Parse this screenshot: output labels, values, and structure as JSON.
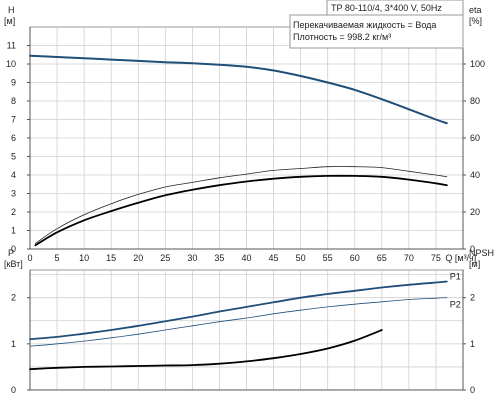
{
  "chart_data": [
    {
      "type": "line",
      "title": "TP 80-110/4, 3*400 V, 50Hz",
      "annotations": [
        "Перекачиваемая жидкость = Вода",
        "Плотность = 998.2 кг/м³"
      ],
      "xlabel": "Q [м³/ч]",
      "x_unit": "[м³/ч]",
      "xlim": [
        0,
        80
      ],
      "x_ticks": [
        0,
        5,
        10,
        15,
        20,
        25,
        30,
        35,
        40,
        45,
        50,
        55,
        60,
        65,
        70,
        75
      ],
      "ylabel": "H",
      "y_unit": "[м]",
      "ylim": [
        0,
        12
      ],
      "y_ticks": [
        0,
        1,
        2,
        3,
        4,
        5,
        6,
        7,
        8,
        9,
        10,
        11
      ],
      "y2label": "eta",
      "y2_unit": "[%]",
      "y2lim": [
        0,
        120
      ],
      "y2_ticks": [
        0,
        20,
        40,
        60,
        80,
        100
      ],
      "grid": true,
      "series": [
        {
          "axis": "left",
          "color": "#1f4e79",
          "width": 2,
          "x": [
            0,
            5,
            10,
            15,
            20,
            25,
            30,
            35,
            40,
            45,
            50,
            55,
            60,
            65,
            70,
            75,
            77
          ],
          "values": [
            10.45,
            10.38,
            10.31,
            10.24,
            10.17,
            10.1,
            10.04,
            9.96,
            9.85,
            9.65,
            9.35,
            9.0,
            8.6,
            8.1,
            7.55,
            7.0,
            6.8
          ]
        },
        {
          "axis": "right",
          "color": "#222222",
          "width": 0.8,
          "x": [
            1,
            5,
            10,
            15,
            20,
            25,
            30,
            35,
            40,
            45,
            50,
            55,
            60,
            65,
            70,
            75,
            77
          ],
          "values": [
            3,
            11,
            18.5,
            24.5,
            29.5,
            33.5,
            36,
            38.5,
            40.5,
            42.5,
            43.5,
            44.5,
            44.5,
            44,
            42,
            40,
            39
          ]
        },
        {
          "axis": "right",
          "color": "#000000",
          "width": 1.8,
          "x": [
            1,
            5,
            10,
            15,
            20,
            25,
            30,
            35,
            40,
            45,
            50,
            55,
            60,
            65,
            70,
            75,
            77
          ],
          "values": [
            2,
            9,
            15.5,
            20.5,
            25,
            29,
            32,
            34.5,
            36.5,
            38,
            39,
            39.5,
            39.5,
            39,
            37.5,
            35.5,
            34.5
          ]
        }
      ]
    },
    {
      "type": "line",
      "xlim": [
        0,
        80
      ],
      "ylabel": "P",
      "y_unit": "[кВт]",
      "ylim": [
        0,
        2.6
      ],
      "y_ticks": [
        0,
        1,
        2
      ],
      "y2label": "NPSH",
      "y2_unit": "[м]",
      "y2lim": [
        0,
        2.6
      ],
      "y2_ticks": [
        0,
        1,
        2
      ],
      "grid": true,
      "series": [
        {
          "name": "P1",
          "axis": "left",
          "color": "#1f4e79",
          "width": 1.8,
          "x": [
            0,
            5,
            10,
            15,
            20,
            25,
            30,
            35,
            40,
            45,
            50,
            55,
            60,
            65,
            70,
            75,
            77
          ],
          "values": [
            1.1,
            1.15,
            1.22,
            1.3,
            1.39,
            1.49,
            1.59,
            1.7,
            1.8,
            1.9,
            2.0,
            2.08,
            2.15,
            2.22,
            2.28,
            2.33,
            2.35
          ]
        },
        {
          "name": "P2",
          "axis": "left",
          "color": "#1f4e79",
          "width": 0.8,
          "x": [
            0,
            5,
            10,
            15,
            20,
            25,
            30,
            35,
            40,
            45,
            50,
            55,
            60,
            65,
            70,
            75,
            77
          ],
          "values": [
            0.95,
            1.0,
            1.06,
            1.13,
            1.21,
            1.3,
            1.39,
            1.48,
            1.56,
            1.65,
            1.73,
            1.8,
            1.86,
            1.91,
            1.96,
            1.99,
            2.0
          ]
        },
        {
          "axis": "right",
          "color": "#000000",
          "width": 1.8,
          "x": [
            0,
            5,
            10,
            15,
            20,
            25,
            30,
            35,
            40,
            45,
            50,
            55,
            60,
            65
          ],
          "values": [
            0.45,
            0.48,
            0.5,
            0.51,
            0.52,
            0.53,
            0.54,
            0.57,
            0.62,
            0.69,
            0.78,
            0.9,
            1.07,
            1.3
          ]
        }
      ]
    }
  ]
}
